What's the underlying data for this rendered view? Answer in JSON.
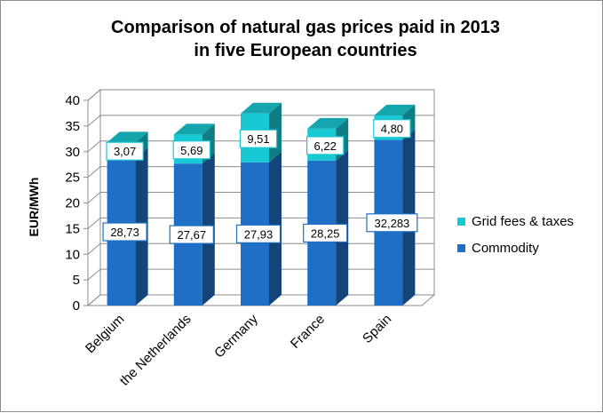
{
  "chart_data": {
    "type": "bar",
    "stacked": true,
    "three_d": true,
    "title_lines": [
      "Comparison of natural gas prices paid in 2013",
      "in five European countries"
    ],
    "xlabel": "",
    "ylabel": "EUR/MWh",
    "ylim": [
      0,
      40
    ],
    "yticks": [
      0,
      5,
      10,
      15,
      20,
      25,
      30,
      35,
      40
    ],
    "grid": true,
    "legend_position": "right",
    "categories": [
      "Belgium",
      "the Netherlands",
      "Germany",
      "France",
      "Spain"
    ],
    "series": [
      {
        "name": "Commodity",
        "color": "#1f6fc6",
        "values": [
          28.73,
          27.67,
          27.93,
          28.25,
          32.283
        ],
        "labels": [
          "28,73",
          "27,67",
          "27,93",
          "28,25",
          "32,283"
        ]
      },
      {
        "name": "Grid fees & taxes",
        "color": "#18c9d3",
        "values": [
          3.07,
          5.69,
          9.51,
          6.22,
          4.8
        ],
        "labels": [
          "3,07",
          "5,69",
          "9,51",
          "6,22",
          "4,80"
        ]
      }
    ]
  }
}
